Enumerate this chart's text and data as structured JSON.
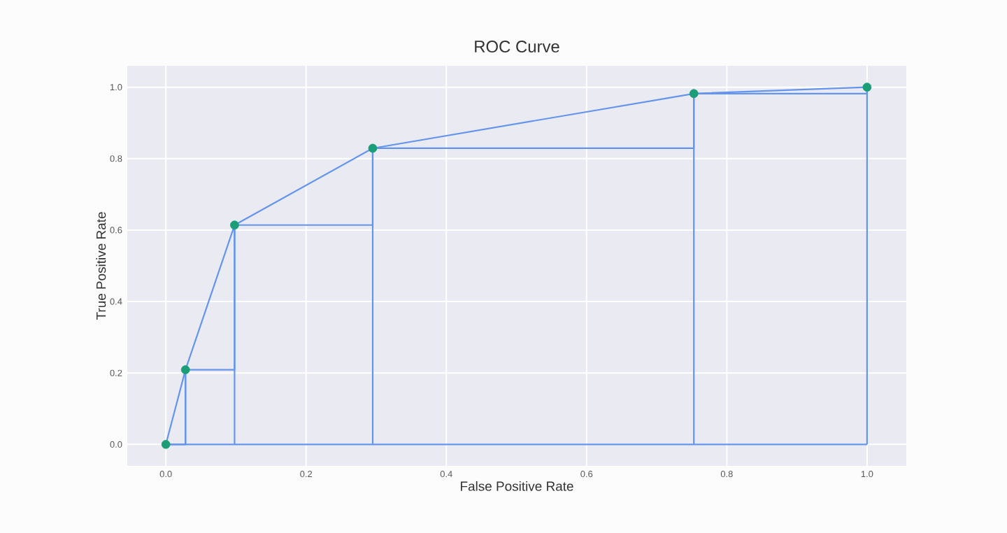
{
  "chart_data": {
    "type": "line",
    "title": "ROC Curve",
    "xlabel": "False Positive Rate",
    "ylabel": "True Positive Rate",
    "series": [
      {
        "type": "step",
        "color": "#6495ed",
        "x": [
          0,
          0.028,
          0.098,
          0.295,
          0.753,
          1
        ],
        "values": [
          0,
          0.209,
          0.614,
          0.829,
          0.982,
          1
        ]
      },
      {
        "color": "#6495ed",
        "x": [
          0,
          1
        ],
        "values": [
          0,
          0
        ]
      },
      {
        "color": "#6495ed",
        "x": [
          0.028,
          0.028
        ],
        "values": [
          0,
          0.209
        ]
      },
      {
        "color": "#6495ed",
        "x": [
          0.098,
          0.098
        ],
        "values": [
          0,
          0.614
        ]
      },
      {
        "color": "#6495ed",
        "x": [
          0.295,
          0.295
        ],
        "values": [
          0,
          0.829
        ]
      },
      {
        "color": "#6495ed",
        "x": [
          0.753,
          0.753
        ],
        "values": [
          0,
          0.982
        ]
      },
      {
        "color": "#6495ed",
        "x": [
          1,
          1
        ],
        "values": [
          0,
          1
        ]
      },
      {
        "color": "#6495ed",
        "x": [
          0,
          0.028,
          0.098,
          0.295,
          0.753,
          1
        ],
        "values": [
          0,
          0.209,
          0.614,
          0.829,
          0.982,
          1
        ]
      },
      {
        "type": "scatter",
        "color": "#1b9e77",
        "marker": "circle",
        "x": [
          0,
          0.028,
          0.098,
          0.295,
          0.753,
          1
        ],
        "values": [
          0,
          0.209,
          0.614,
          0.829,
          0.982,
          1
        ]
      }
    ],
    "xlim": [
      -0.055,
      1.056
    ],
    "ylim": [
      -0.06,
      1.06
    ],
    "xticks": [
      {
        "value": 0,
        "label": "0.0"
      },
      {
        "value": 0.2,
        "label": "0.2"
      },
      {
        "value": 0.4,
        "label": "0.4"
      },
      {
        "value": 0.6,
        "label": "0.6"
      },
      {
        "value": 0.8,
        "label": "0.8"
      },
      {
        "value": 1,
        "label": "1.0"
      }
    ],
    "yticks": [
      {
        "value": 0,
        "label": "0.0"
      },
      {
        "value": 0.2,
        "label": "0.2"
      },
      {
        "value": 0.4,
        "label": "0.4"
      },
      {
        "value": 0.6,
        "label": "0.6"
      },
      {
        "value": 0.8,
        "label": "0.8"
      },
      {
        "value": 1,
        "label": "1.0"
      }
    ],
    "grid": true
  }
}
